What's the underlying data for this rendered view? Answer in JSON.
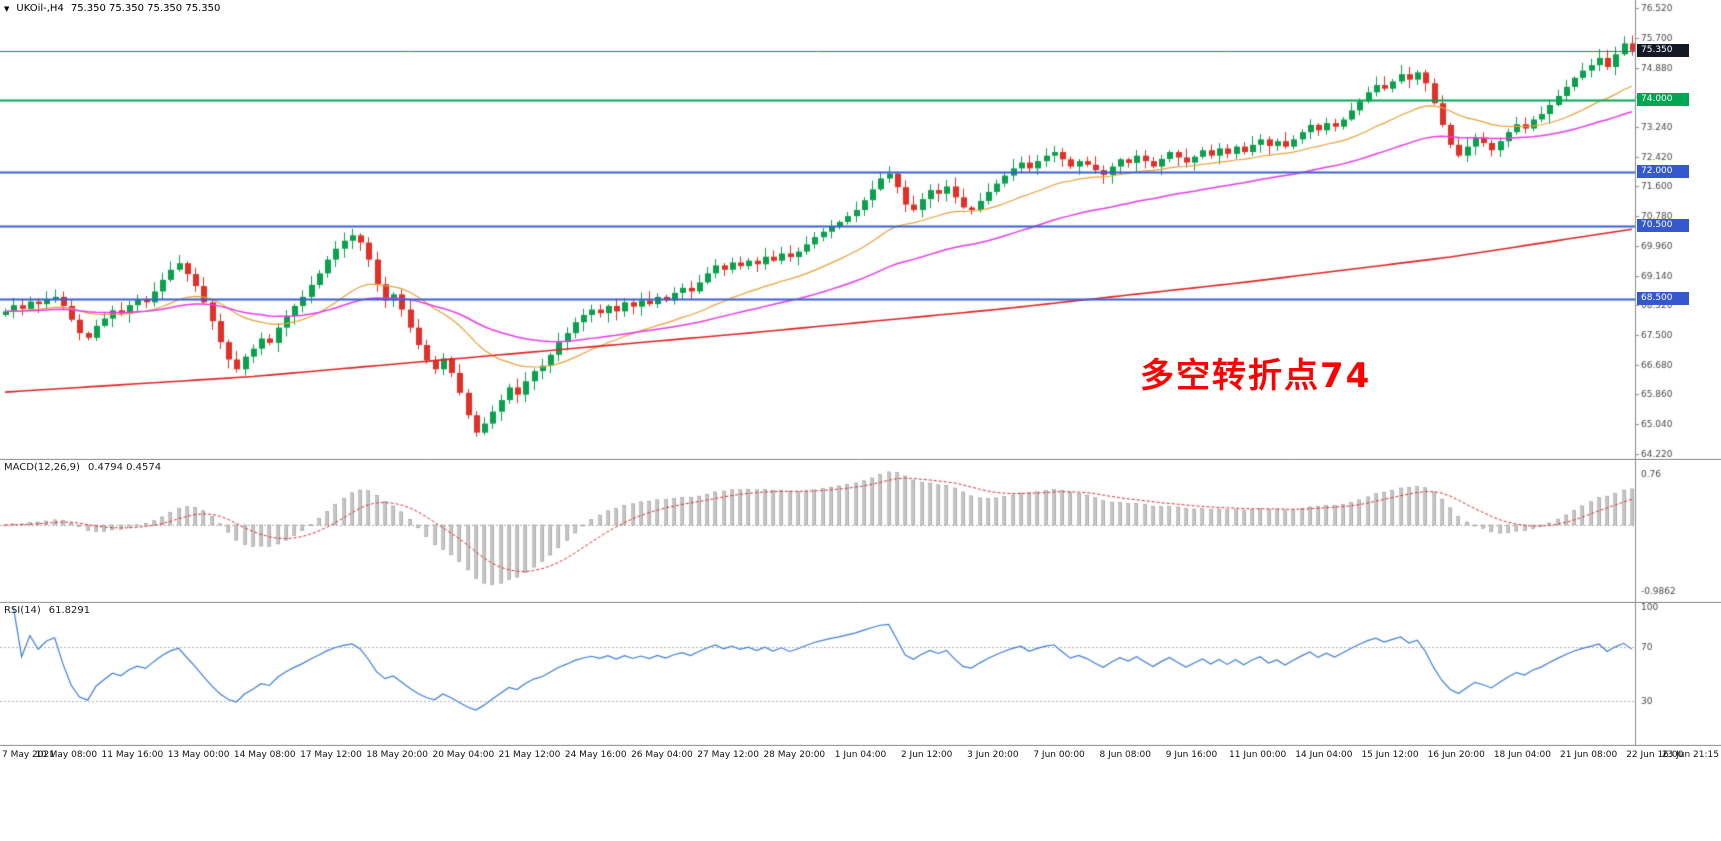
{
  "header": {
    "dropdown_glyph": "▼",
    "symbol_label": "UKOil-,H4",
    "ohlc_readout": "75.350 75.350 75.350 75.350"
  },
  "annotation": {
    "text": "多空转折点74",
    "color": "#ff0000"
  },
  "chart_data": [
    {
      "type": "candlestick",
      "symbol": "UKOil-",
      "timeframe": "H4",
      "x_labels": [
        "7 May 2021",
        "10 May 08:00",
        "11 May 16:00",
        "13 May 00:00",
        "14 May 08:00",
        "17 May 12:00",
        "18 May 20:00",
        "20 May 04:00",
        "21 May 12:00",
        "24 May 16:00",
        "26 May 04:00",
        "27 May 12:00",
        "28 May 20:00",
        "1 Jun 04:00",
        "2 Jun 12:00",
        "3 Jun 20:00",
        "7 Jun 00:00",
        "8 Jun 08:00",
        "9 Jun 16:00",
        "11 Jun 00:00",
        "14 Jun 04:00",
        "15 Jun 12:00",
        "16 Jun 20:00",
        "18 Jun 04:00",
        "21 Jun 08:00",
        "22 Jun 16:00",
        "23 Jun 21:15"
      ],
      "bars_per_label": 8,
      "y_axis": {
        "price_max": 76.75,
        "price_min": 64.1,
        "tick_start": 76.52,
        "tick_step": 0.82,
        "tick_count": 16,
        "decimals": 3
      },
      "first_open": 68.05,
      "closes": [
        68.15,
        68.32,
        68.22,
        68.42,
        68.35,
        68.48,
        68.55,
        68.3,
        67.92,
        67.55,
        67.42,
        67.75,
        67.95,
        68.18,
        68.08,
        68.32,
        68.48,
        68.4,
        68.7,
        69.02,
        69.3,
        69.48,
        69.18,
        68.85,
        68.4,
        67.88,
        67.3,
        66.82,
        66.55,
        66.9,
        67.12,
        67.4,
        67.28,
        67.7,
        68.02,
        68.3,
        68.55,
        68.88,
        69.2,
        69.58,
        69.88,
        70.1,
        70.25,
        70.05,
        69.58,
        68.9,
        68.45,
        68.62,
        68.2,
        67.7,
        67.22,
        66.8,
        66.55,
        66.85,
        66.45,
        65.9,
        65.28,
        64.8,
        65.05,
        65.38,
        65.7,
        66.05,
        65.85,
        66.22,
        66.5,
        66.65,
        66.95,
        67.3,
        67.55,
        67.85,
        68.05,
        68.2,
        68.1,
        68.3,
        68.15,
        68.4,
        68.28,
        68.45,
        68.35,
        68.55,
        68.45,
        68.66,
        68.8,
        68.7,
        68.95,
        69.2,
        69.42,
        69.3,
        69.5,
        69.4,
        69.55,
        69.45,
        69.66,
        69.55,
        69.75,
        69.65,
        69.8,
        70.0,
        70.2,
        70.35,
        70.5,
        70.62,
        70.78,
        70.95,
        71.22,
        71.52,
        71.82,
        71.95,
        71.58,
        71.1,
        70.95,
        71.25,
        71.5,
        71.4,
        71.6,
        71.3,
        71.02,
        70.95,
        71.2,
        71.45,
        71.68,
        71.9,
        72.1,
        72.26,
        72.1,
        72.3,
        72.45,
        72.55,
        72.35,
        72.15,
        72.3,
        72.2,
        72.05,
        71.92,
        72.15,
        72.35,
        72.25,
        72.45,
        72.3,
        72.15,
        72.36,
        72.55,
        72.4,
        72.26,
        72.42,
        72.6,
        72.45,
        72.65,
        72.5,
        72.7,
        72.55,
        72.75,
        72.9,
        72.72,
        72.85,
        72.7,
        72.9,
        73.1,
        73.3,
        73.15,
        73.35,
        73.25,
        73.45,
        73.7,
        73.95,
        74.2,
        74.4,
        74.3,
        74.5,
        74.7,
        74.55,
        74.75,
        74.45,
        73.9,
        73.3,
        72.75,
        72.45,
        72.7,
        72.95,
        72.8,
        72.6,
        72.85,
        73.1,
        73.32,
        73.2,
        73.45,
        73.6,
        73.85,
        74.1,
        74.35,
        74.6,
        74.8,
        74.95,
        75.15,
        74.9,
        75.25,
        75.55,
        75.35
      ],
      "last_price": 75.35,
      "hlines": [
        {
          "price": 75.35,
          "line_color": "#3a5fd0",
          "line_width": 1,
          "badge_bg": "#141926",
          "label": "75.350"
        },
        {
          "price": 74.0,
          "line_color": "#00a651",
          "line_width": 2,
          "badge_bg": "#00a651",
          "label": "74.000"
        },
        {
          "price": 72.0,
          "line_color": "#3a5fd0",
          "line_width": 2,
          "badge_bg": "#3558cf",
          "label": "72.000"
        },
        {
          "price": 70.5,
          "line_color": "#3a5fd0",
          "line_width": 2,
          "badge_bg": "#3558cf",
          "label": "70.500"
        },
        {
          "price": 68.5,
          "line_color": "#3a5fd0",
          "line_width": 2,
          "badge_bg": "#3558cf",
          "label": "68.500"
        }
      ],
      "moving_averages": [
        {
          "name": "fast-ma",
          "type": "ema",
          "period": 21,
          "color": "#e8a23c",
          "width": 1.2
        },
        {
          "name": "mid-ma",
          "type": "ema",
          "period": 50,
          "color": "#e83ce8",
          "width": 1.5
        },
        {
          "name": "slow-ma",
          "type": "points",
          "color": "#e02424",
          "width": 1.6,
          "points": [
            [
              0,
              65.92
            ],
            [
              30,
              66.35
            ],
            [
              60,
              66.95
            ],
            [
              90,
              67.55
            ],
            [
              120,
              68.2
            ],
            [
              150,
              68.95
            ],
            [
              175,
              69.65
            ],
            [
              197,
              70.42
            ]
          ]
        }
      ],
      "colors": {
        "up": "#0aa04e",
        "down": "#e03028",
        "axis_text": "#4a4a4a",
        "separator": "#8c8c8c",
        "bg": "#ffffff"
      }
    },
    {
      "type": "macd",
      "label": "MACD(12,26,9)",
      "values_text": "0.4794 0.4574",
      "fast": 12,
      "slow": 26,
      "signal": 9,
      "scale": {
        "vmax": 0.92,
        "vmin": -1.1
      },
      "ticks": [
        {
          "v": 0.76,
          "label": "0.76"
        },
        {
          "v": -0.9862,
          "label": "-0.9862"
        }
      ],
      "colors": {
        "histogram": "#c6c6c6",
        "histogram_border": "#9e9e9e",
        "signal": "#e03030",
        "zero_line": "#b4b4b4"
      }
    },
    {
      "type": "rsi",
      "label": "RSI(14)",
      "value_text": "61.8291",
      "period": 14,
      "levels": [
        70,
        30
      ],
      "ticks": [
        {
          "v": 100,
          "label": "100"
        },
        {
          "v": 70,
          "label": "70"
        },
        {
          "v": 30,
          "label": "30"
        }
      ],
      "colors": {
        "line": "#3f7ed8",
        "level_line": "#b4b4b4"
      }
    }
  ]
}
